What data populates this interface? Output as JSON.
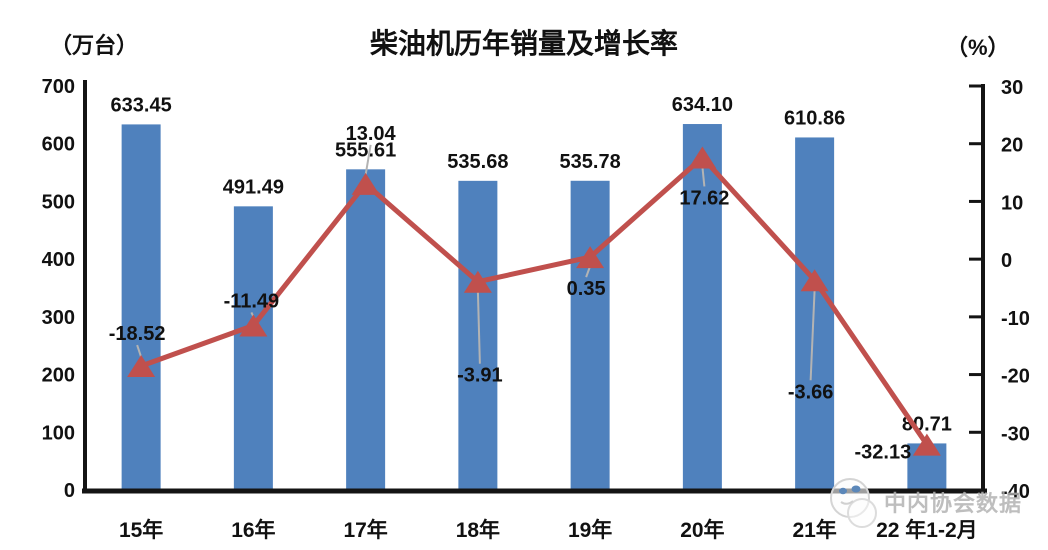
{
  "chart_data": {
    "type": "bar+line",
    "title": "柴油机历年销量及增长率",
    "categories": [
      "15年",
      "16年",
      "17年",
      "18年",
      "19年",
      "20年",
      "21年",
      "22 年1-2月"
    ],
    "series": [
      {
        "name": "销量",
        "type": "bar",
        "axis": "left",
        "color": "#4f81bd",
        "values": [
          633.45,
          491.49,
          555.61,
          535.68,
          535.78,
          634.1,
          610.86,
          80.71
        ],
        "labels": [
          "633.45",
          "491.49",
          "555.61",
          "535.68",
          "535.78",
          "634.10",
          "610.86",
          "80.71"
        ]
      },
      {
        "name": "增长率",
        "type": "line",
        "axis": "right",
        "color": "#c0504d",
        "values": [
          -18.52,
          -11.49,
          13.04,
          -3.91,
          0.35,
          17.62,
          -3.66,
          -32.13
        ],
        "labels": [
          "-18.52",
          "-11.49",
          "13.04",
          "-3.91",
          "0.35",
          "17.62",
          "-3.66",
          "-32.13"
        ]
      }
    ],
    "left_axis": {
      "unit": "（万台）",
      "min": 0,
      "max": 700,
      "step": 100,
      "ticks": [
        "700",
        "600",
        "500",
        "400",
        "300",
        "200",
        "100",
        "0"
      ]
    },
    "right_axis": {
      "unit": "（%）",
      "min": -40,
      "max": 30,
      "step": 10,
      "ticks": [
        "30",
        "20",
        "10",
        "0",
        "-10",
        "-20",
        "-30",
        "-40"
      ]
    },
    "grid": false,
    "legend_position": "none"
  },
  "watermark": {
    "text": "中内协会数据"
  },
  "colors": {
    "bar": "#4f81bd",
    "line": "#c0504d",
    "axis": "#141414",
    "label": "#111111",
    "leader": "#b3b3b3",
    "watermark": "#b3b3b3"
  }
}
